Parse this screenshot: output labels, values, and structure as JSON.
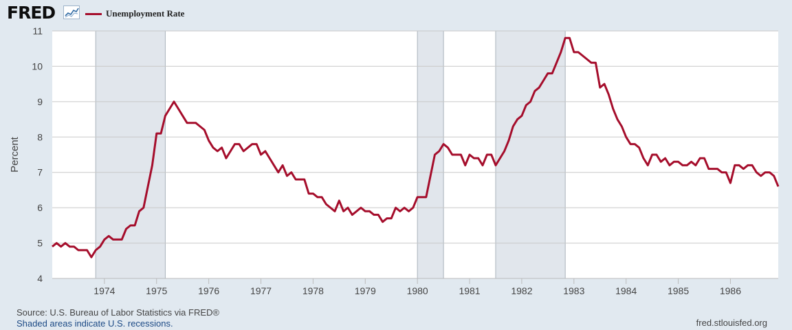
{
  "brand": {
    "name": "FRED",
    "mark_icon": "line-chart-icon"
  },
  "legend": {
    "label": "Unemployment Rate",
    "color": "#a50d2b"
  },
  "footer": {
    "source": "Source: U.S. Bureau of Labor Statistics via FRED®",
    "recession_note": "Shaded areas indicate U.S. recessions.",
    "url": "fred.stlouisfed.org"
  },
  "colors": {
    "series": "#a50d2b",
    "recession": "#e1e6ec",
    "plot_bg": "#ffffff",
    "grid": "#c8c8c8",
    "page_bg": "#e1e9f0"
  },
  "chart_data": {
    "type": "line",
    "title": "",
    "xlabel": "",
    "ylabel": "Percent",
    "ylim": [
      4,
      11
    ],
    "yticks": [
      4,
      5,
      6,
      7,
      8,
      9,
      10,
      11
    ],
    "xlim": [
      "1973-01",
      "1986-12"
    ],
    "xticks": [
      "1974",
      "1975",
      "1976",
      "1977",
      "1978",
      "1979",
      "1980",
      "1981",
      "1982",
      "1983",
      "1984",
      "1985",
      "1986"
    ],
    "grid": "horizontal",
    "recessions": [
      [
        "1973-11",
        "1975-03"
      ],
      [
        "1980-01",
        "1980-07"
      ],
      [
        "1981-07",
        "1982-11"
      ]
    ],
    "series": [
      {
        "name": "Unemployment Rate",
        "start": "1973-01",
        "frequency": "monthly",
        "values": [
          4.9,
          5.0,
          4.9,
          5.0,
          4.9,
          4.9,
          4.8,
          4.8,
          4.8,
          4.6,
          4.8,
          4.9,
          5.1,
          5.2,
          5.1,
          5.1,
          5.1,
          5.4,
          5.5,
          5.5,
          5.9,
          6.0,
          6.6,
          7.2,
          8.1,
          8.1,
          8.6,
          8.8,
          9.0,
          8.8,
          8.6,
          8.4,
          8.4,
          8.4,
          8.3,
          8.2,
          7.9,
          7.7,
          7.6,
          7.7,
          7.4,
          7.6,
          7.8,
          7.8,
          7.6,
          7.7,
          7.8,
          7.8,
          7.5,
          7.6,
          7.4,
          7.2,
          7.0,
          7.2,
          6.9,
          7.0,
          6.8,
          6.8,
          6.8,
          6.4,
          6.4,
          6.3,
          6.3,
          6.1,
          6.0,
          5.9,
          6.2,
          5.9,
          6.0,
          5.8,
          5.9,
          6.0,
          5.9,
          5.9,
          5.8,
          5.8,
          5.6,
          5.7,
          5.7,
          6.0,
          5.9,
          6.0,
          5.9,
          6.0,
          6.3,
          6.3,
          6.3,
          6.9,
          7.5,
          7.6,
          7.8,
          7.7,
          7.5,
          7.5,
          7.5,
          7.2,
          7.5,
          7.4,
          7.4,
          7.2,
          7.5,
          7.5,
          7.2,
          7.4,
          7.6,
          7.9,
          8.3,
          8.5,
          8.6,
          8.9,
          9.0,
          9.3,
          9.4,
          9.6,
          9.8,
          9.8,
          10.1,
          10.4,
          10.8,
          10.8,
          10.4,
          10.4,
          10.3,
          10.2,
          10.1,
          10.1,
          9.4,
          9.5,
          9.2,
          8.8,
          8.5,
          8.3,
          8.0,
          7.8,
          7.8,
          7.7,
          7.4,
          7.2,
          7.5,
          7.5,
          7.3,
          7.4,
          7.2,
          7.3,
          7.3,
          7.2,
          7.2,
          7.3,
          7.2,
          7.4,
          7.4,
          7.1,
          7.1,
          7.1,
          7.0,
          7.0,
          6.7,
          7.2,
          7.2,
          7.1,
          7.2,
          7.2,
          7.0,
          6.9,
          7.0,
          7.0,
          6.9,
          6.6
        ]
      }
    ]
  }
}
